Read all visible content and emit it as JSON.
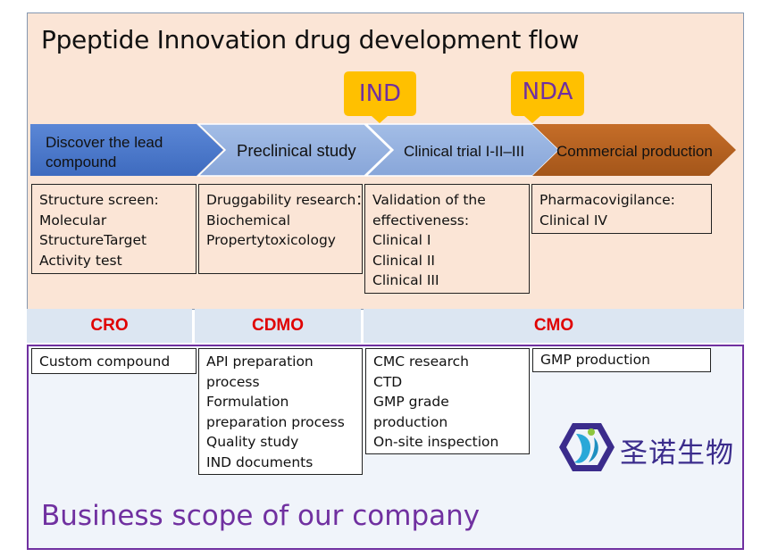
{
  "title": "Ppeptide Innovation drug development flow",
  "callouts": {
    "ind": "IND",
    "nda": "NDA"
  },
  "stages": [
    {
      "label_line1": "Discover the lead",
      "label_line2": "compound",
      "color": "#4472c4"
    },
    {
      "label": "Preclinical study",
      "color": "#8faadc"
    },
    {
      "label": "Clinical trial I-II–III",
      "color": "#8faadc"
    },
    {
      "label": "Commercial production",
      "color": "#b4601f"
    }
  ],
  "stage_boxes": [
    {
      "lines": [
        "Structure screen:",
        "Molecular",
        "StructureTarget",
        "Activity test"
      ]
    },
    {
      "lines": [
        "Druggability research：",
        "Biochemical",
        "Propertytoxicology"
      ]
    },
    {
      "lines": [
        "Validation of the",
        "effectiveness:",
        "Clinical I",
        "Clinical II",
        "Clinical III"
      ]
    },
    {
      "lines": [
        "Pharmacovigilance:",
        "Clinical IV"
      ]
    }
  ],
  "segments": [
    {
      "label": "CRO"
    },
    {
      "label": "CDMO"
    },
    {
      "label": "CMO"
    }
  ],
  "service_boxes": [
    {
      "lines": [
        "Custom compound"
      ]
    },
    {
      "lines": [
        "API preparation",
        "process",
        "Formulation",
        "preparation process",
        "Quality study",
        "IND documents"
      ]
    },
    {
      "lines": [
        "CMC research",
        "CTD",
        "GMP grade",
        "production",
        "On-site inspection"
      ]
    },
    {
      "lines": [
        "GMP production"
      ]
    }
  ],
  "logo": {
    "text": "圣诺生物",
    "icon": "hexagon-logo-icon"
  },
  "business_scope": "Business scope of our company",
  "colors": {
    "panel_bg": "#fbe5d6",
    "segment_bg": "#dce6f2",
    "segment_text": "#e00000",
    "callout_bg": "#ffc000",
    "callout_text": "#7030a0",
    "purple": "#7030a0"
  }
}
